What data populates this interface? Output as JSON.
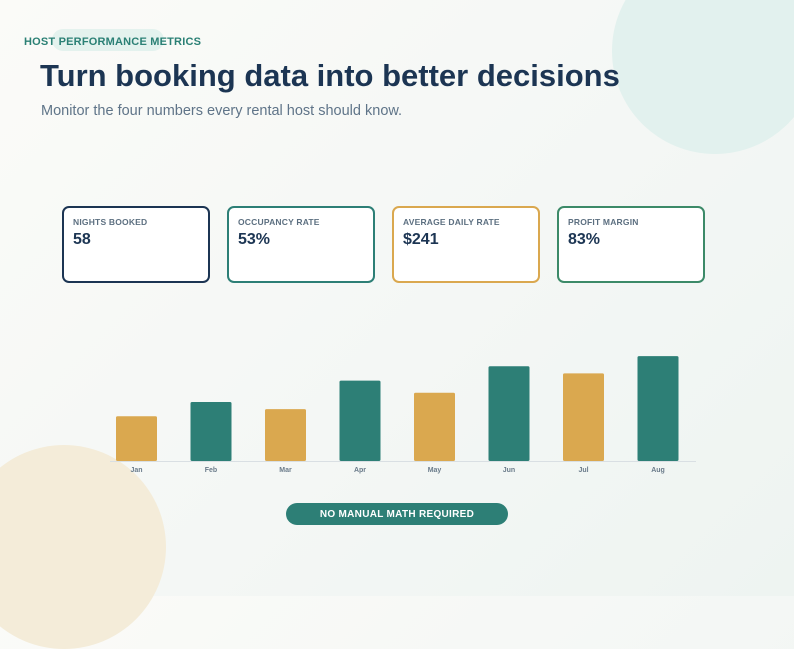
{
  "header": {
    "eyebrow": "HOST PERFORMANCE METRICS",
    "title": "Turn booking data into better decisions",
    "subtitle": "Monitor the four numbers every rental host should know."
  },
  "metrics": [
    {
      "label": "NIGHTS BOOKED",
      "value": "58",
      "border_color": "#1c3553"
    },
    {
      "label": "OCCUPANCY RATE",
      "value": "53%",
      "border_color": "#2d7f76"
    },
    {
      "label": "AVERAGE DAILY RATE",
      "value": "$241",
      "border_color": "#daa84f"
    },
    {
      "label": "PROFIT MARGIN",
      "value": "83%",
      "border_color": "#3c8a68"
    }
  ],
  "chart_data": {
    "type": "bar",
    "categories": [
      "Jan",
      "Feb",
      "Mar",
      "Apr",
      "May",
      "Jun",
      "Jul",
      "Aug"
    ],
    "values": [
      44,
      58,
      51,
      79,
      67,
      93,
      86,
      103
    ],
    "bar_colors": [
      "#daa84f",
      "#2d7f76",
      "#daa84f",
      "#2d7f76",
      "#daa84f",
      "#2d7f76",
      "#daa84f",
      "#2d7f76"
    ],
    "title": "",
    "xlabel": "",
    "ylabel": "",
    "ylim": [
      0,
      110
    ],
    "grid": false
  },
  "cta": {
    "label": "NO MANUAL MATH REQUIRED"
  },
  "colors": {
    "navy": "#1c3553",
    "teal": "#2d7f76",
    "gold": "#daa84f",
    "green": "#3c8a68"
  }
}
